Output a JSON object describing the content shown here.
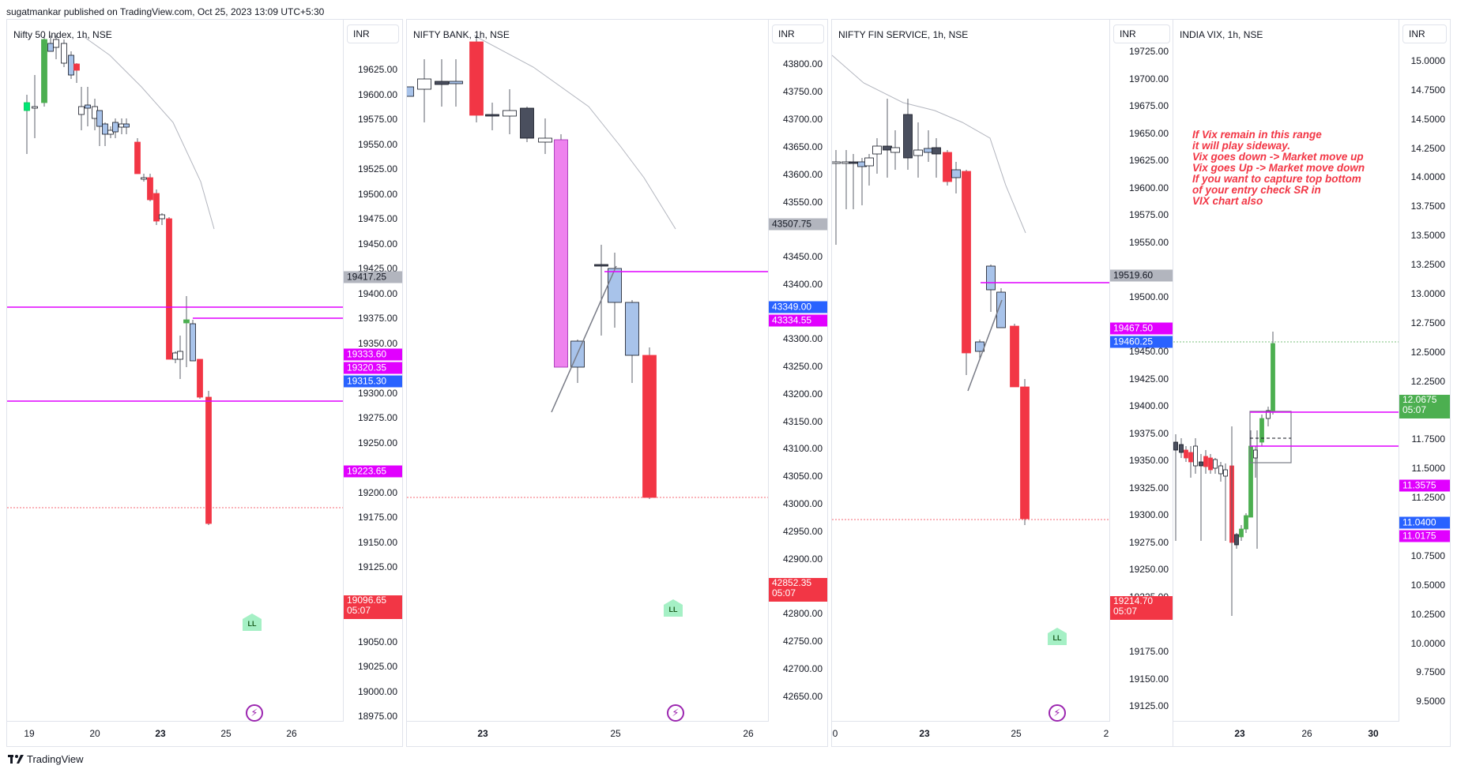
{
  "header": {
    "published_text": "sugatmankar published on TradingView.com, Oct 25, 2023 13:09 UTC+5:30"
  },
  "footer": {
    "brand": "TradingView"
  },
  "colors": {
    "up": "#4caf50",
    "down": "#f23645",
    "hollow_blue": "#a8c3ea",
    "dark": "#4a4f5e",
    "magenta": "#e100ff",
    "blue_label": "#2962ff",
    "grey_label": "#b2b5be",
    "green_label": "#4caf50"
  },
  "annotation": {
    "text": "If Vix remain in this range\nit will play sideway.\nVix goes down -> Market move up\nVix goes Up ->      Market move down\nIf you want to capture top bottom\nof your entry check SR in\nVIX chart also"
  },
  "panels": [
    {
      "title": "Nifty 50 Index, 1h, NSE",
      "currency": "INR",
      "price_ticks": [
        "19625.00",
        "19600.00",
        "19575.00",
        "19550.00",
        "19525.00",
        "19500.00",
        "19475.00",
        "19450.00",
        "19425.00",
        "19400.00",
        "19375.00",
        "19350.00",
        "19300.00",
        "19275.00",
        "19250.00",
        "19200.00",
        "19175.00",
        "19150.00",
        "19125.00",
        "19050.00",
        "19025.00",
        "19000.00",
        "18975.00"
      ],
      "time_ticks": [
        {
          "label": "19",
          "bold": false
        },
        {
          "label": "20",
          "bold": false
        },
        {
          "label": "23",
          "bold": true
        },
        {
          "label": "25",
          "bold": false
        },
        {
          "label": "26",
          "bold": false
        }
      ],
      "price_labels": [
        {
          "text": "19417.25",
          "color": "#b2b5be",
          "text_color": "#131722"
        },
        {
          "text": "19333.60",
          "color": "#e100ff"
        },
        {
          "text": "19320.35",
          "color": "#e100ff"
        },
        {
          "text": "19315.30",
          "color": "#2962ff"
        },
        {
          "text": "19223.65",
          "color": "#e100ff"
        },
        {
          "text": "19096.65",
          "sub": "05:07",
          "color": "#f23645"
        }
      ],
      "marker": "LL"
    },
    {
      "title": "NIFTY BANK, 1h, NSE",
      "currency": "INR",
      "price_ticks": [
        "43800.00",
        "43750.00",
        "43700.00",
        "43650.00",
        "43600.00",
        "43550.00",
        "43450.00",
        "43400.00",
        "43300.00",
        "43250.00",
        "43200.00",
        "43150.00",
        "43100.00",
        "43050.00",
        "43000.00",
        "42950.00",
        "42900.00",
        "42800.00",
        "42750.00",
        "42700.00",
        "42650.00"
      ],
      "time_ticks": [
        {
          "label": "23",
          "bold": true
        },
        {
          "label": "25",
          "bold": false
        },
        {
          "label": "26",
          "bold": false
        }
      ],
      "price_labels": [
        {
          "text": "43507.75",
          "color": "#b2b5be",
          "text_color": "#131722"
        },
        {
          "text": "43349.00",
          "color": "#2962ff"
        },
        {
          "text": "43334.55",
          "color": "#e100ff"
        },
        {
          "text": "42852.35",
          "sub": "05:07",
          "color": "#f23645"
        }
      ],
      "marker": "LL"
    },
    {
      "title": "NIFTY FIN SERVICE, 1h, NSE",
      "currency": "INR",
      "price_ticks": [
        "19725.00",
        "19700.00",
        "19675.00",
        "19650.00",
        "19625.00",
        "19600.00",
        "19575.00",
        "19550.00",
        "19500.00",
        "19450.00",
        "19425.00",
        "19400.00",
        "19375.00",
        "19350.00",
        "19325.00",
        "19300.00",
        "19275.00",
        "19250.00",
        "19225.00",
        "19175.00",
        "19150.00",
        "19125.00"
      ],
      "time_ticks": [
        {
          "label": "0",
          "bold": false
        },
        {
          "label": "23",
          "bold": true
        },
        {
          "label": "25",
          "bold": false
        },
        {
          "label": "2",
          "bold": false
        }
      ],
      "price_labels": [
        {
          "text": "19519.60",
          "color": "#b2b5be",
          "text_color": "#131722"
        },
        {
          "text": "19467.50",
          "color": "#e100ff"
        },
        {
          "text": "19460.25",
          "color": "#2962ff"
        },
        {
          "text": "19214.70",
          "sub": "05:07",
          "color": "#f23645"
        }
      ],
      "marker": "LL"
    },
    {
      "title": "INDIA VIX, 1h, NSE",
      "currency": "INR",
      "price_ticks": [
        "15.0000",
        "14.7500",
        "14.5000",
        "14.2500",
        "14.0000",
        "13.7500",
        "13.5000",
        "13.2500",
        "13.0000",
        "12.7500",
        "12.5000",
        "12.2500",
        "11.7500",
        "11.5000",
        "11.2500",
        "10.7500",
        "10.5000",
        "10.2500",
        "10.0000",
        "9.7500",
        "9.5000"
      ],
      "time_ticks": [
        {
          "label": "23",
          "bold": true
        },
        {
          "label": "26",
          "bold": false
        },
        {
          "label": "30",
          "bold": true
        }
      ],
      "price_labels": [
        {
          "text": "12.0675",
          "sub": "05:07",
          "color": "#4caf50"
        },
        {
          "text": "11.3575",
          "color": "#e100ff"
        },
        {
          "text": "11.0400",
          "color": "#2962ff"
        },
        {
          "text": "11.0175",
          "color": "#e100ff"
        }
      ]
    }
  ]
}
